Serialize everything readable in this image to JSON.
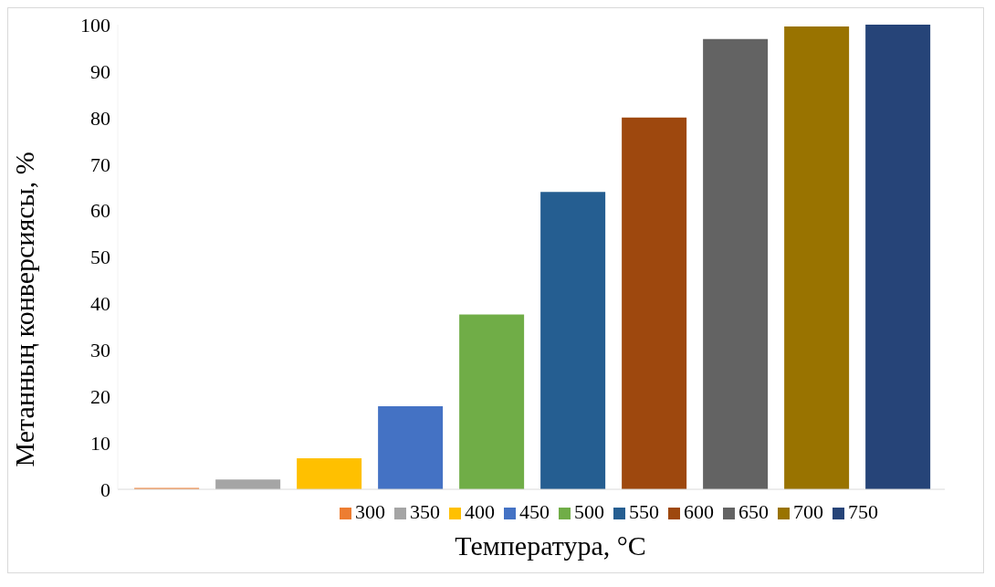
{
  "chart_data": {
    "type": "bar",
    "xlabel": "Температура, °C",
    "ylabel": "Метанның конверсиясы, %",
    "categories": [
      null
    ],
    "series": [
      {
        "name": "300",
        "color": "#ed7d31",
        "values": [
          0.3
        ]
      },
      {
        "name": "350",
        "color": "#a5a5a5",
        "values": [
          2.1
        ]
      },
      {
        "name": "400",
        "color": "#ffc000",
        "values": [
          6.7
        ]
      },
      {
        "name": "450",
        "color": "#4472c4",
        "values": [
          17.9
        ]
      },
      {
        "name": "500",
        "color": "#70ad47",
        "values": [
          37.6
        ]
      },
      {
        "name": "550",
        "color": "#255e91",
        "values": [
          64
        ]
      },
      {
        "name": "600",
        "color": "#9e480e",
        "values": [
          80
        ]
      },
      {
        "name": "650",
        "color": "#636363",
        "values": [
          96.9
        ]
      },
      {
        "name": "700",
        "color": "#997300",
        "values": [
          99.6
        ]
      },
      {
        "name": "750",
        "color": "#264478",
        "values": [
          100
        ]
      }
    ],
    "ylim": [
      0,
      100
    ],
    "yticks": [
      0,
      10,
      20,
      30,
      40,
      50,
      60,
      70,
      80,
      90,
      100
    ],
    "grid": false,
    "legend": "bottom"
  }
}
